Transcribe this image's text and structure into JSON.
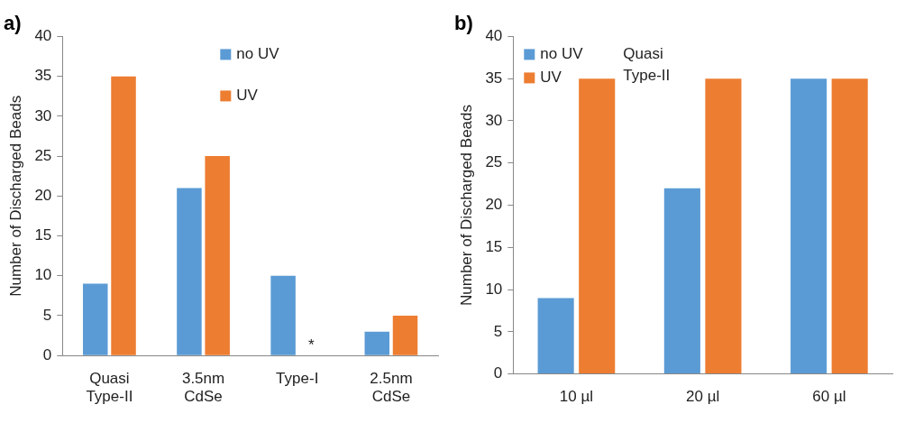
{
  "chart_data": [
    {
      "type": "bar",
      "title": "a)",
      "ylabel": "Number of Discharged Beads",
      "categories": [
        "Quasi\nType-II",
        "3.5nm\nCdSe",
        "Type-I",
        "2.5nm\nCdSe"
      ],
      "series": [
        {
          "name": "no UV",
          "color": "#5b9bd5",
          "values": [
            9,
            21,
            10,
            3
          ]
        },
        {
          "name": "UV",
          "color": "#ed7d31",
          "values": [
            35,
            25,
            0,
            5
          ]
        }
      ],
      "ylim": [
        0,
        40
      ],
      "yticks": [
        0,
        5,
        10,
        15,
        20,
        25,
        30,
        35,
        40
      ],
      "grid": false,
      "legend": "top",
      "annotations": [
        {
          "text": "*",
          "x": "Type-I",
          "y": 0
        }
      ]
    },
    {
      "type": "bar",
      "title": "b)",
      "ylabel": "Number of Discharged Beads",
      "categories": [
        "10 µl",
        "20 µl",
        "60 µl"
      ],
      "series": [
        {
          "name": "no UV",
          "color": "#5b9bd5",
          "values": [
            9,
            22,
            35
          ]
        },
        {
          "name": "UV",
          "color": "#ed7d31",
          "values": [
            35,
            35,
            35
          ]
        }
      ],
      "ylim": [
        0,
        40
      ],
      "yticks": [
        0,
        5,
        10,
        15,
        20,
        25,
        30,
        35,
        40
      ],
      "grid": false,
      "legend": "top left",
      "annotations": [
        "Quasi\nType-II"
      ]
    }
  ]
}
